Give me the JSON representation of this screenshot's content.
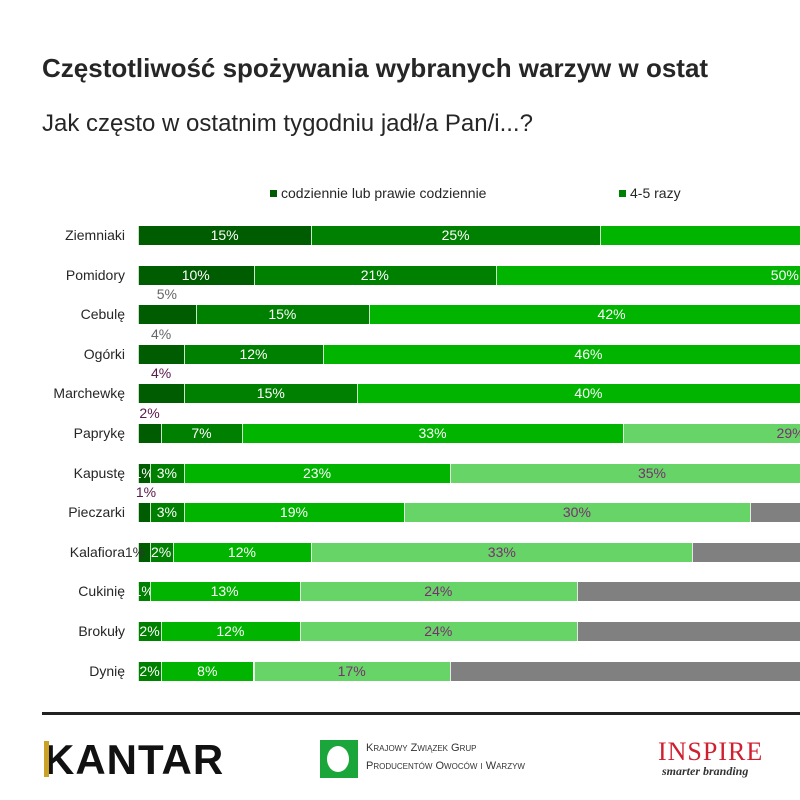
{
  "chart_data": {
    "type": "bar",
    "orientation": "horizontal-stacked",
    "title": "Częstotliwość spożywania wybranych warzyw w ostat",
    "subtitle": "Jak często w ostatnim tygodniu jadł/a Pan/i...?",
    "legend_placement": "top",
    "unit": "%",
    "series": [
      {
        "name": "codziennie lub prawie codziennie",
        "color": "#005c00"
      },
      {
        "name": "4-5 razy",
        "color": "#008000"
      },
      {
        "name": "",
        "color": "#00b400"
      },
      {
        "name": "",
        "color": "#66d466"
      },
      {
        "name": "",
        "color": "#808080"
      }
    ],
    "categories": [
      "Ziemniaki",
      "Pomidory",
      "Cebulę",
      "Ogórki",
      "Marchewkę",
      "Paprykę",
      "Kapustę",
      "Pieczarki",
      "Kalafiora",
      "Cukinię",
      "Brokuły",
      "Dynię"
    ],
    "values": [
      [
        15,
        25,
        null
      ],
      [
        10,
        21,
        50
      ],
      [
        5,
        15,
        42
      ],
      [
        4,
        12,
        46
      ],
      [
        4,
        15,
        40
      ],
      [
        2,
        7,
        33,
        29
      ],
      [
        1,
        3,
        23,
        35
      ],
      [
        1,
        3,
        19,
        30,
        null
      ],
      [
        1,
        2,
        12,
        33,
        null
      ],
      [
        0,
        1,
        13,
        24,
        null
      ],
      [
        0,
        2,
        12,
        24,
        null
      ],
      [
        0,
        2,
        8,
        17,
        null
      ]
    ],
    "label_colors": {
      "inside": "#ffffff",
      "light": "#7a2e72",
      "above_gray": "#666666",
      "above_purple": "#5a1a4a"
    }
  },
  "footer": {
    "logo_kantar": "KANTAR",
    "logo_kz_line1": "Krajowy Związek Grup",
    "logo_kz_line2": "Producentów Owoców i Warzyw",
    "logo_inspire": "INSPIRE",
    "logo_inspire_tagline": "smarter branding"
  }
}
